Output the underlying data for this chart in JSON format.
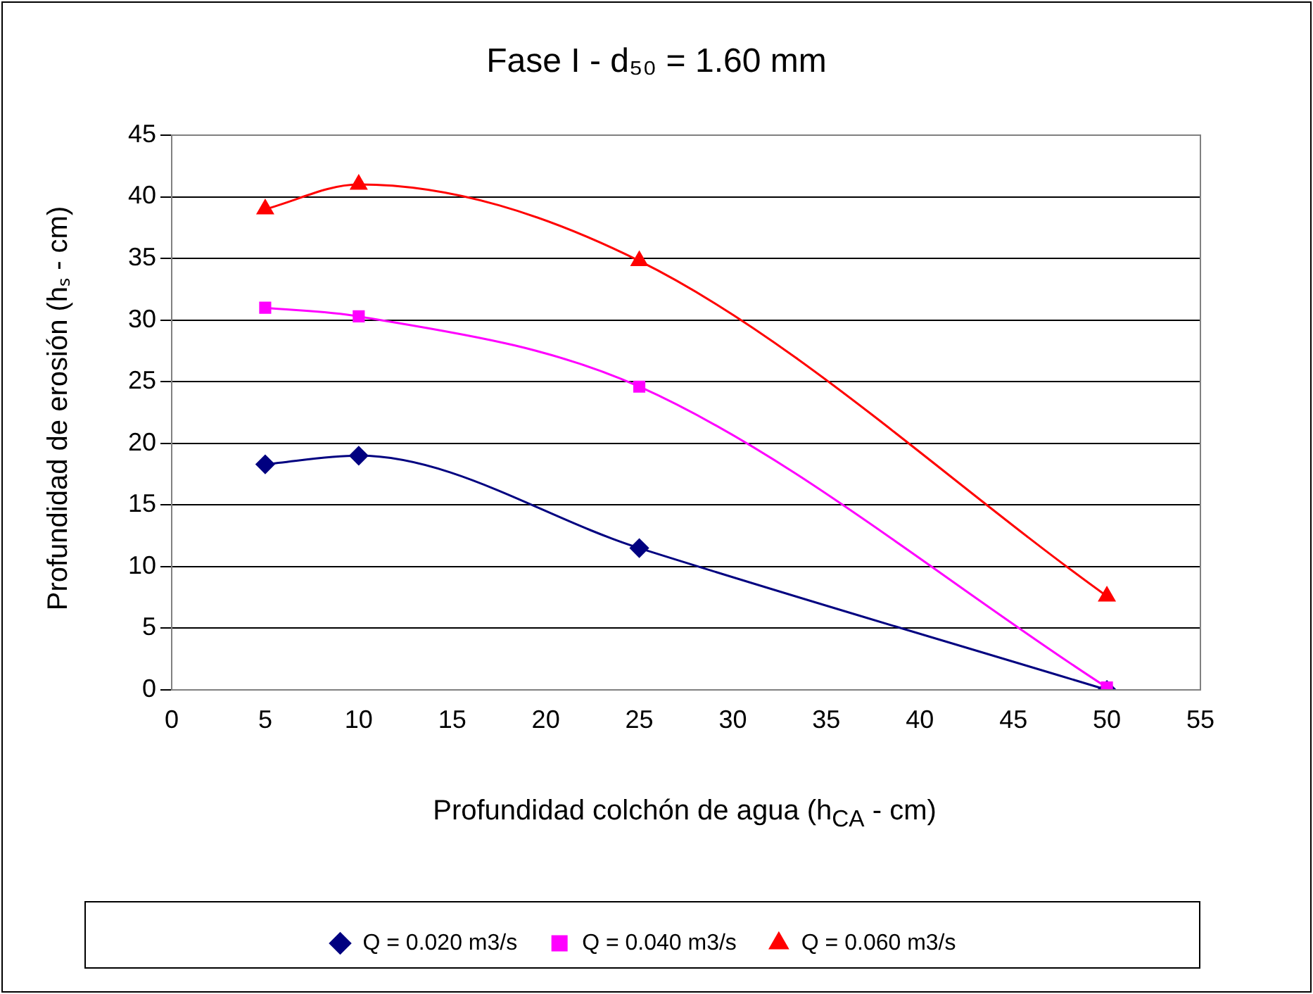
{
  "chart_data": {
    "type": "line",
    "title": "Fase I - d₅₀ = 1.60 mm",
    "xlabel": "Profundidad colchón de agua (h$_{CA}$ - cm)",
    "ylabel": "Profundidad de erosión (hₛ - cm)",
    "x": [
      5,
      10,
      25,
      50
    ],
    "series": [
      {
        "name": "Q = 0.020 m3/s",
        "color": "#000080",
        "marker": "diamond",
        "values": [
          18.3,
          19.0,
          11.5,
          0
        ]
      },
      {
        "name": "Q = 0.040 m3/s",
        "color": "#ff00ff",
        "marker": "square",
        "values": [
          31.0,
          30.3,
          24.6,
          0.2
        ]
      },
      {
        "name": "Q = 0.060 m3/s",
        "color": "#ff0000",
        "marker": "triangle",
        "values": [
          39.0,
          41.0,
          34.8,
          7.6
        ]
      }
    ],
    "xlim": [
      0,
      55
    ],
    "xticks": [
      0,
      5,
      10,
      15,
      20,
      25,
      30,
      35,
      40,
      45,
      50,
      55
    ],
    "ylim": [
      0,
      45
    ],
    "yticks": [
      0,
      5,
      10,
      15,
      20,
      25,
      30,
      35,
      40,
      45
    ],
    "grid": "y",
    "legend": "bottom",
    "line_style": "solid"
  }
}
